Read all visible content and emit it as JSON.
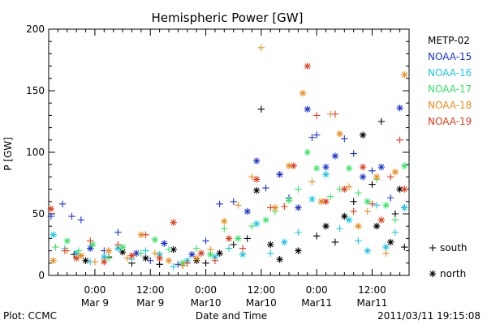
{
  "chart_data": {
    "type": "scatter",
    "title": "Hemispheric Power [GW]",
    "ylabel": "P [GW]",
    "xlabel": "Date and Time",
    "footer_left": "Plot: CCMC",
    "footer_right": "2011/03/11 19:15:08",
    "ylim": [
      0,
      200
    ],
    "yticks": [
      0,
      50,
      100,
      150,
      200
    ],
    "xlim_hours": [
      -10,
      68
    ],
    "xticks": [
      {
        "hour": 0,
        "time": "0:00",
        "date": "Mar 9"
      },
      {
        "hour": 12,
        "time": "12:00",
        "date": "Mar 9"
      },
      {
        "hour": 24,
        "time": "0:00",
        "date": "Mar10"
      },
      {
        "hour": 36,
        "time": "12:00",
        "date": "Mar10"
      },
      {
        "hour": 48,
        "time": "0:00",
        "date": "Mar11"
      },
      {
        "hour": 60,
        "time": "12:00",
        "date": "Mar11"
      }
    ],
    "marker_legend": [
      {
        "symbol": "+",
        "label": "south"
      },
      {
        "symbol": "*",
        "label": "north"
      }
    ],
    "grid": false,
    "legend_position": "right",
    "series": [
      {
        "name": "METP-02",
        "color": "#000000",
        "points": [
          [
            -4.5,
            17,
            "s"
          ],
          [
            -2,
            12,
            "n"
          ],
          [
            3,
            15,
            "s"
          ],
          [
            6,
            19,
            "n"
          ],
          [
            8,
            10,
            "s"
          ],
          [
            11,
            14,
            "n"
          ],
          [
            14,
            9,
            "s"
          ],
          [
            17,
            21,
            "n"
          ],
          [
            19,
            8,
            "s"
          ],
          [
            22,
            12,
            "n"
          ],
          [
            24,
            10,
            "s"
          ],
          [
            27,
            18,
            "n"
          ],
          [
            30,
            25,
            "s"
          ],
          [
            33,
            30,
            "s"
          ],
          [
            35,
            69,
            "n"
          ],
          [
            36,
            135,
            "s"
          ],
          [
            38,
            25,
            "n"
          ],
          [
            40,
            13,
            "n"
          ],
          [
            44,
            20,
            "n"
          ],
          [
            48,
            32,
            "s"
          ],
          [
            50,
            40,
            "n"
          ],
          [
            52,
            27,
            "s"
          ],
          [
            54,
            48,
            "n"
          ],
          [
            56,
            60,
            "s"
          ],
          [
            58,
            114,
            "n"
          ],
          [
            60,
            74,
            "s"
          ],
          [
            61,
            40,
            "n"
          ],
          [
            62,
            125,
            "s"
          ],
          [
            64,
            27,
            "n"
          ],
          [
            65,
            50,
            "s"
          ],
          [
            66,
            70,
            "n"
          ],
          [
            67,
            23,
            "s"
          ]
        ]
      },
      {
        "name": "NOAA-15",
        "color": "#1a33d9",
        "points": [
          [
            -9.5,
            48,
            "s"
          ],
          [
            -7,
            58,
            "s"
          ],
          [
            -5,
            48,
            "s"
          ],
          [
            -3,
            45,
            "s"
          ],
          [
            -1,
            22,
            "n"
          ],
          [
            2,
            20,
            "s"
          ],
          [
            5,
            35,
            "s"
          ],
          [
            9,
            18,
            "n"
          ],
          [
            12,
            12,
            "s"
          ],
          [
            15,
            26,
            "n"
          ],
          [
            18,
            9,
            "s"
          ],
          [
            21,
            17,
            "n"
          ],
          [
            24,
            28,
            "s"
          ],
          [
            27,
            58,
            "s"
          ],
          [
            30,
            60,
            "s"
          ],
          [
            33,
            52,
            "n"
          ],
          [
            35,
            93,
            "n"
          ],
          [
            37,
            71,
            "s"
          ],
          [
            40,
            82,
            "n"
          ],
          [
            42,
            63,
            "s"
          ],
          [
            44,
            55,
            "n"
          ],
          [
            46,
            135,
            "n"
          ],
          [
            47,
            112,
            "s"
          ],
          [
            48,
            114,
            "s"
          ],
          [
            50,
            88,
            "n"
          ],
          [
            52,
            97,
            "n"
          ],
          [
            54,
            111,
            "s"
          ],
          [
            56,
            99,
            "s"
          ],
          [
            58,
            80,
            "n"
          ],
          [
            60,
            85,
            "s"
          ],
          [
            62,
            88,
            "n"
          ],
          [
            64,
            63,
            "s"
          ],
          [
            66,
            136,
            "n"
          ],
          [
            67,
            55,
            "s"
          ]
        ]
      },
      {
        "name": "NOAA-16",
        "color": "#1ac8e6",
        "points": [
          [
            -9,
            33,
            "n"
          ],
          [
            -6.5,
            22,
            "s"
          ],
          [
            -4,
            18,
            "n"
          ],
          [
            -1,
            11,
            "s"
          ],
          [
            2,
            15,
            "n"
          ],
          [
            5,
            22,
            "n"
          ],
          [
            8,
            13,
            "s"
          ],
          [
            11,
            20,
            "s"
          ],
          [
            14,
            17,
            "n"
          ],
          [
            17,
            7,
            "s"
          ],
          [
            20,
            12,
            "n"
          ],
          [
            23,
            18,
            "s"
          ],
          [
            26,
            15,
            "n"
          ],
          [
            29,
            22,
            "s"
          ],
          [
            32,
            17,
            "n"
          ],
          [
            35,
            42,
            "n"
          ],
          [
            38,
            18,
            "s"
          ],
          [
            41,
            27,
            "n"
          ],
          [
            44,
            35,
            "s"
          ],
          [
            47,
            62,
            "n"
          ],
          [
            50,
            82,
            "n"
          ],
          [
            53,
            38,
            "s"
          ],
          [
            55,
            45,
            "n"
          ],
          [
            57,
            28,
            "s"
          ],
          [
            59,
            20,
            "n"
          ],
          [
            61,
            57,
            "s"
          ],
          [
            63,
            23,
            "n"
          ],
          [
            65,
            35,
            "s"
          ],
          [
            67,
            55,
            "n"
          ]
        ]
      },
      {
        "name": "NOAA-17",
        "color": "#33e666",
        "points": [
          [
            -8.5,
            23,
            "s"
          ],
          [
            -6,
            28,
            "n"
          ],
          [
            -3.5,
            20,
            "s"
          ],
          [
            -0.5,
            25,
            "n"
          ],
          [
            3,
            14,
            "s"
          ],
          [
            6,
            23,
            "n"
          ],
          [
            10,
            18,
            "s"
          ],
          [
            13,
            29,
            "n"
          ],
          [
            16,
            21,
            "s"
          ],
          [
            19,
            10,
            "n"
          ],
          [
            22,
            22,
            "s"
          ],
          [
            25,
            17,
            "n"
          ],
          [
            28,
            38,
            "s"
          ],
          [
            31,
            30,
            "n"
          ],
          [
            34,
            40,
            "s"
          ],
          [
            37,
            45,
            "n"
          ],
          [
            39,
            52,
            "s"
          ],
          [
            42,
            61,
            "n"
          ],
          [
            44,
            70,
            "s"
          ],
          [
            46,
            100,
            "n"
          ],
          [
            48,
            87,
            "n"
          ],
          [
            51,
            64,
            "s"
          ],
          [
            53,
            70,
            "s"
          ],
          [
            55,
            87,
            "n"
          ],
          [
            57,
            67,
            "s"
          ],
          [
            59,
            60,
            "n"
          ],
          [
            61,
            78,
            "s"
          ],
          [
            63,
            57,
            "n"
          ],
          [
            65,
            45,
            "s"
          ],
          [
            67,
            89,
            "n"
          ]
        ]
      },
      {
        "name": "NOAA-18",
        "color": "#ee8c1a",
        "points": [
          [
            -9,
            12,
            "n"
          ],
          [
            -6,
            20,
            "s"
          ],
          [
            -3,
            16,
            "n"
          ],
          [
            0,
            11,
            "s"
          ],
          [
            3,
            20,
            "n"
          ],
          [
            7,
            14,
            "s"
          ],
          [
            10,
            33,
            "n"
          ],
          [
            13,
            18,
            "s"
          ],
          [
            16,
            12,
            "n"
          ],
          [
            19,
            8,
            "s"
          ],
          [
            22,
            14,
            "n"
          ],
          [
            25,
            21,
            "s"
          ],
          [
            28,
            44,
            "n"
          ],
          [
            31,
            57,
            "s"
          ],
          [
            34,
            80,
            "s"
          ],
          [
            36,
            185,
            "s"
          ],
          [
            39,
            55,
            "n"
          ],
          [
            42,
            89,
            "n"
          ],
          [
            45,
            148,
            "n"
          ],
          [
            47,
            76,
            "s"
          ],
          [
            49,
            60,
            "n"
          ],
          [
            51,
            131,
            "s"
          ],
          [
            53,
            115,
            "n"
          ],
          [
            55,
            72,
            "s"
          ],
          [
            57,
            40,
            "n"
          ],
          [
            59,
            52,
            "s"
          ],
          [
            61,
            80,
            "n"
          ],
          [
            63,
            18,
            "s"
          ],
          [
            65,
            84,
            "n"
          ],
          [
            67,
            163,
            "n"
          ]
        ]
      },
      {
        "name": "NOAA-19",
        "color": "#e63a1a",
        "points": [
          [
            -9.5,
            54,
            "n"
          ],
          [
            -6.5,
            20,
            "s"
          ],
          [
            -4,
            14,
            "n"
          ],
          [
            -1,
            28,
            "s"
          ],
          [
            2,
            11,
            "n"
          ],
          [
            5,
            25,
            "s"
          ],
          [
            8,
            16,
            "n"
          ],
          [
            11,
            33,
            "s"
          ],
          [
            14,
            14,
            "n"
          ],
          [
            17,
            43,
            "n"
          ],
          [
            20,
            10,
            "s"
          ],
          [
            23,
            18,
            "n"
          ],
          [
            26,
            12,
            "s"
          ],
          [
            29,
            30,
            "n"
          ],
          [
            32,
            22,
            "s"
          ],
          [
            35,
            78,
            "n"
          ],
          [
            38,
            55,
            "s"
          ],
          [
            41,
            56,
            "s"
          ],
          [
            43,
            89,
            "n"
          ],
          [
            46,
            170,
            "n"
          ],
          [
            48,
            130,
            "s"
          ],
          [
            50,
            60,
            "n"
          ],
          [
            52,
            131,
            "s"
          ],
          [
            54,
            70,
            "n"
          ],
          [
            56,
            52,
            "s"
          ],
          [
            58,
            88,
            "n"
          ],
          [
            60,
            58,
            "s"
          ],
          [
            62,
            45,
            "n"
          ],
          [
            64,
            80,
            "s"
          ],
          [
            66,
            110,
            "s"
          ],
          [
            67,
            70,
            "n"
          ]
        ]
      }
    ]
  }
}
